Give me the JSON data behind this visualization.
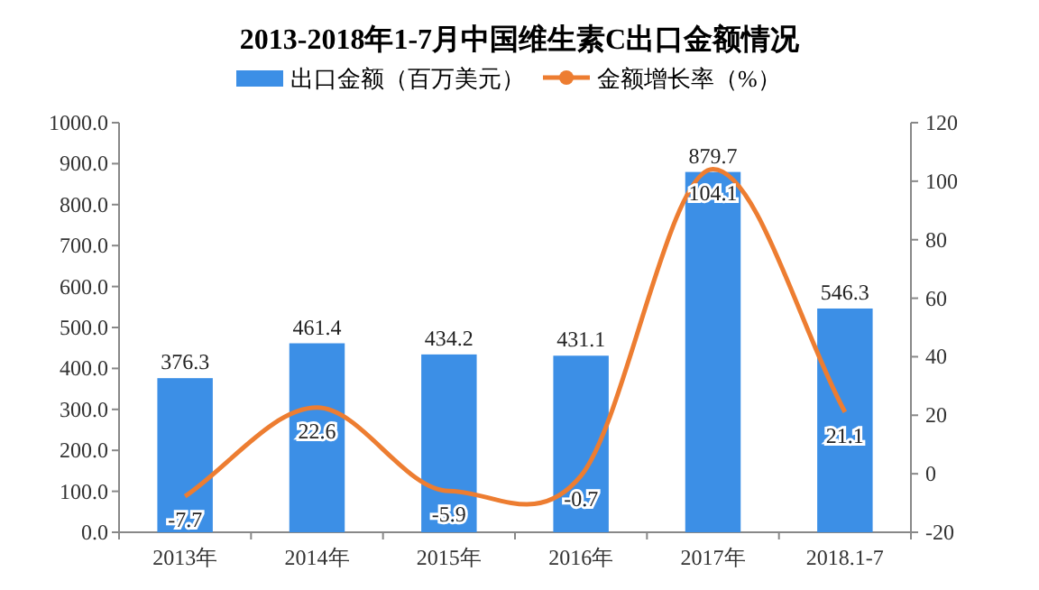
{
  "chart_data": {
    "type": "bar",
    "title": "2013-2018年1-7月中国维生素C出口金额情况",
    "categories": [
      "2013年",
      "2014年",
      "2015年",
      "2016年",
      "2017年",
      "2018.1-7"
    ],
    "series": [
      {
        "name": "出口金额（百万美元）",
        "color": "#3c8fe6",
        "values": [
          376.3,
          461.4,
          434.2,
          431.1,
          879.7,
          546.3
        ]
      },
      {
        "name": "金额增长率（%）",
        "type": "line",
        "axis": "y2",
        "color": "#ed7d31",
        "values": [
          -7.7,
          22.6,
          -5.9,
          -0.7,
          104.1,
          21.1
        ]
      }
    ],
    "ylim": [
      0,
      1000
    ],
    "yticks": [
      {
        "value": 0,
        "label": "0.0"
      },
      {
        "value": 100,
        "label": "100.0"
      },
      {
        "value": 200,
        "label": "200.0"
      },
      {
        "value": 300,
        "label": "300.0"
      },
      {
        "value": 400,
        "label": "400.0"
      },
      {
        "value": 500,
        "label": "500.0"
      },
      {
        "value": 600,
        "label": "600.0"
      },
      {
        "value": 700,
        "label": "700.0"
      },
      {
        "value": 800,
        "label": "800.0"
      },
      {
        "value": 900,
        "label": "900.0"
      },
      {
        "value": 1000,
        "label": "1000.0"
      }
    ],
    "y2lim": [
      -20,
      120
    ],
    "y2ticks": [
      -20,
      0,
      20,
      40,
      60,
      80,
      100,
      120
    ],
    "data_labels": true,
    "legend": "top"
  }
}
